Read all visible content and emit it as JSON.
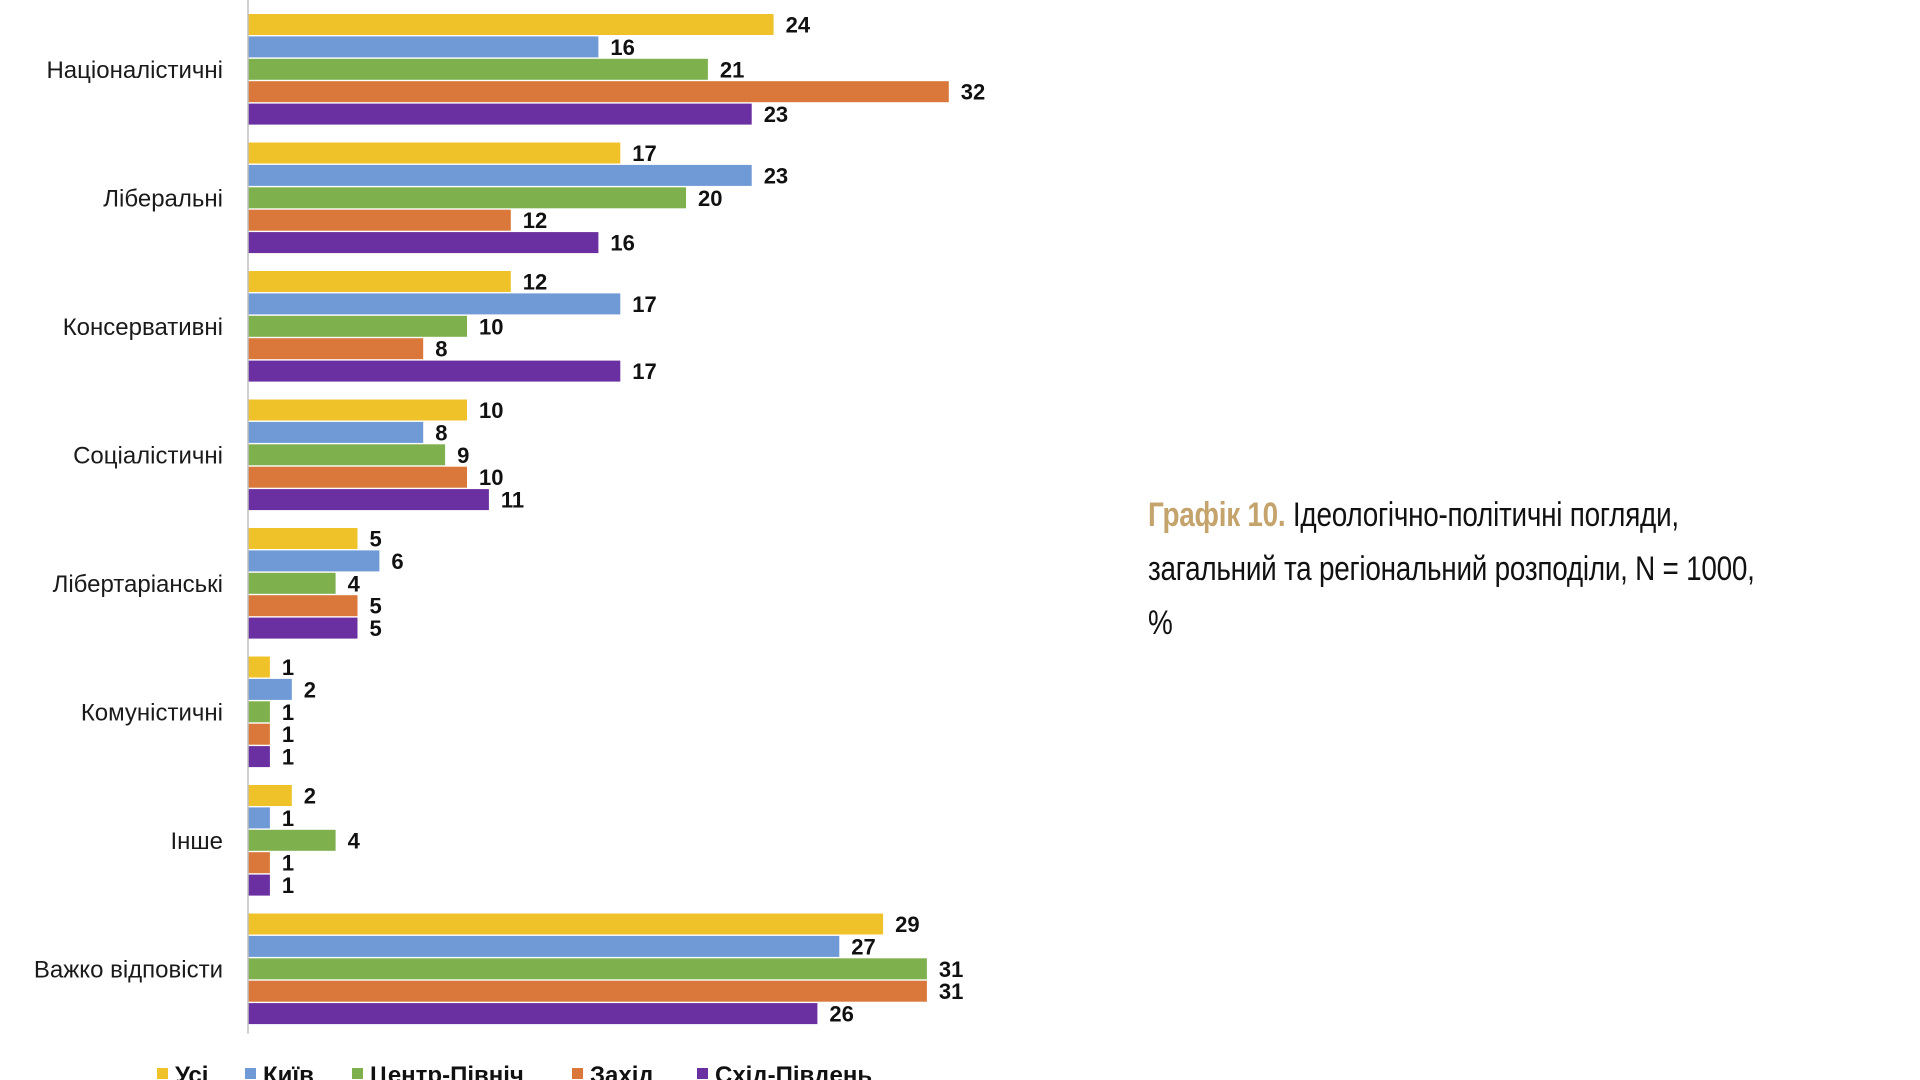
{
  "caption": {
    "label": "Графік 10.",
    "line1": "Ідеологічно-політичні погляди,",
    "line2": "загальний та регіональний розподіли, N = 1000, %"
  },
  "chart_data": {
    "type": "bar",
    "orientation": "horizontal",
    "categories": [
      "Націоналістичні",
      "Ліберальні",
      "Консервативні",
      "Соціалістичні",
      "Лібертаріанські",
      "Комуністичні",
      "Інше",
      "Важко відповісти"
    ],
    "series": [
      {
        "name": "Усі",
        "color": "#f0c22a",
        "values": [
          24,
          17,
          12,
          10,
          5,
          1,
          2,
          29
        ]
      },
      {
        "name": "Київ",
        "color": "#6f9ad6",
        "values": [
          16,
          23,
          17,
          8,
          6,
          2,
          1,
          27
        ]
      },
      {
        "name": "Центр-Північ",
        "color": "#7fb04e",
        "values": [
          21,
          20,
          10,
          9,
          4,
          1,
          4,
          31
        ]
      },
      {
        "name": "Захід",
        "color": "#d9783a",
        "values": [
          32,
          12,
          8,
          10,
          5,
          1,
          1,
          31
        ]
      },
      {
        "name": "Схід-Південь",
        "color": "#6a2fa0",
        "values": [
          23,
          16,
          17,
          11,
          5,
          1,
          1,
          26
        ]
      }
    ],
    "xlim": [
      0,
      32
    ],
    "grid": false,
    "legend_position": "bottom",
    "title": "",
    "xlabel": "",
    "ylabel": ""
  }
}
